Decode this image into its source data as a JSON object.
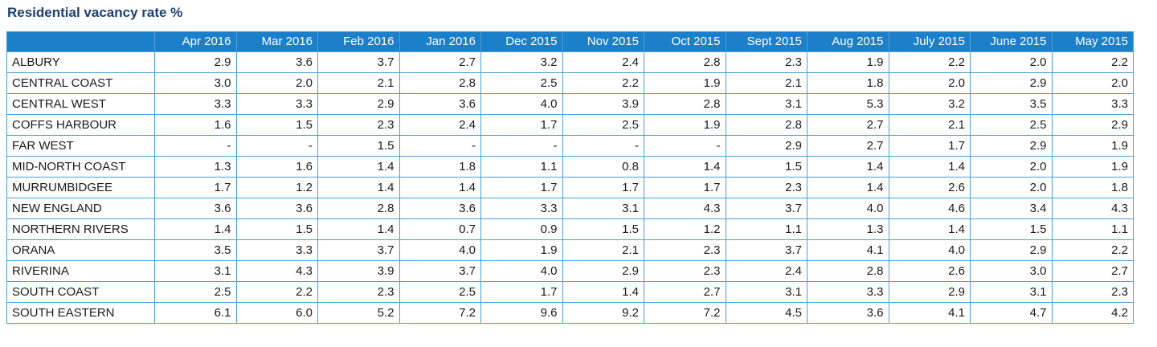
{
  "title": "Residential vacancy rate %",
  "columns": [
    "Apr 2016",
    "Mar 2016",
    "Feb 2016",
    "Jan 2016",
    "Dec 2015",
    "Nov 2015",
    "Oct 2015",
    "Sept 2015",
    "Aug 2015",
    "July 2015",
    "June 2015",
    "May 2015"
  ],
  "rows": [
    {
      "region": "ALBURY",
      "values": [
        "2.9",
        "3.6",
        "3.7",
        "2.7",
        "3.2",
        "2.4",
        "2.8",
        "2.3",
        "1.9",
        "2.2",
        "2.0",
        "2.2"
      ]
    },
    {
      "region": "CENTRAL COAST",
      "values": [
        "3.0",
        "2.0",
        "2.1",
        "2.8",
        "2.5",
        "2.2",
        "1.9",
        "2.1",
        "1.8",
        "2.0",
        "2.9",
        "2.0"
      ]
    },
    {
      "region": "CENTRAL WEST",
      "values": [
        "3.3",
        "3.3",
        "2.9",
        "3.6",
        "4.0",
        "3.9",
        "2.8",
        "3.1",
        "5.3",
        "3.2",
        "3.5",
        "3.3"
      ]
    },
    {
      "region": "COFFS HARBOUR",
      "values": [
        "1.6",
        "1.5",
        "2.3",
        "2.4",
        "1.7",
        "2.5",
        "1.9",
        "2.8",
        "2.7",
        "2.1",
        "2.5",
        "2.9"
      ]
    },
    {
      "region": "FAR WEST",
      "values": [
        "-",
        "-",
        "1.5",
        "-",
        "-",
        "-",
        "-",
        "2.9",
        "2.7",
        "1.7",
        "2.9",
        "1.9"
      ]
    },
    {
      "region": "MID-NORTH COAST",
      "values": [
        "1.3",
        "1.6",
        "1.4",
        "1.8",
        "1.1",
        "0.8",
        "1.4",
        "1.5",
        "1.4",
        "1.4",
        "2.0",
        "1.9"
      ]
    },
    {
      "region": "MURRUMBIDGEE",
      "values": [
        "1.7",
        "1.2",
        "1.4",
        "1.4",
        "1.7",
        "1.7",
        "1.7",
        "2.3",
        "1.4",
        "2.6",
        "2.0",
        "1.8"
      ]
    },
    {
      "region": "NEW ENGLAND",
      "values": [
        "3.6",
        "3.6",
        "2.8",
        "3.6",
        "3.3",
        "3.1",
        "4.3",
        "3.7",
        "4.0",
        "4.6",
        "3.4",
        "4.3"
      ]
    },
    {
      "region": "NORTHERN RIVERS",
      "values": [
        "1.4",
        "1.5",
        "1.4",
        "0.7",
        "0.9",
        "1.5",
        "1.2",
        "1.1",
        "1.3",
        "1.4",
        "1.5",
        "1.1"
      ]
    },
    {
      "region": "ORANA",
      "values": [
        "3.5",
        "3.3",
        "3.7",
        "4.0",
        "1.9",
        "2.1",
        "2.3",
        "3.7",
        "4.1",
        "4.0",
        "2.9",
        "2.2"
      ]
    },
    {
      "region": "RIVERINA",
      "values": [
        "3.1",
        "4.3",
        "3.9",
        "3.7",
        "4.0",
        "2.9",
        "2.3",
        "2.4",
        "2.8",
        "2.6",
        "3.0",
        "2.7"
      ]
    },
    {
      "region": "SOUTH COAST",
      "values": [
        "2.5",
        "2.2",
        "2.3",
        "2.5",
        "1.7",
        "1.4",
        "2.7",
        "3.1",
        "3.3",
        "2.9",
        "3.1",
        "2.3"
      ]
    },
    {
      "region": "SOUTH EASTERN",
      "values": [
        "6.1",
        "6.0",
        "5.2",
        "7.2",
        "9.6",
        "9.2",
        "7.2",
        "4.5",
        "3.6",
        "4.1",
        "4.7",
        "4.2"
      ]
    }
  ],
  "colors": {
    "title": "#1d3f73",
    "header_bg": "#1b7fca",
    "header_text": "#ffffff",
    "border": "#4a9fd8"
  }
}
